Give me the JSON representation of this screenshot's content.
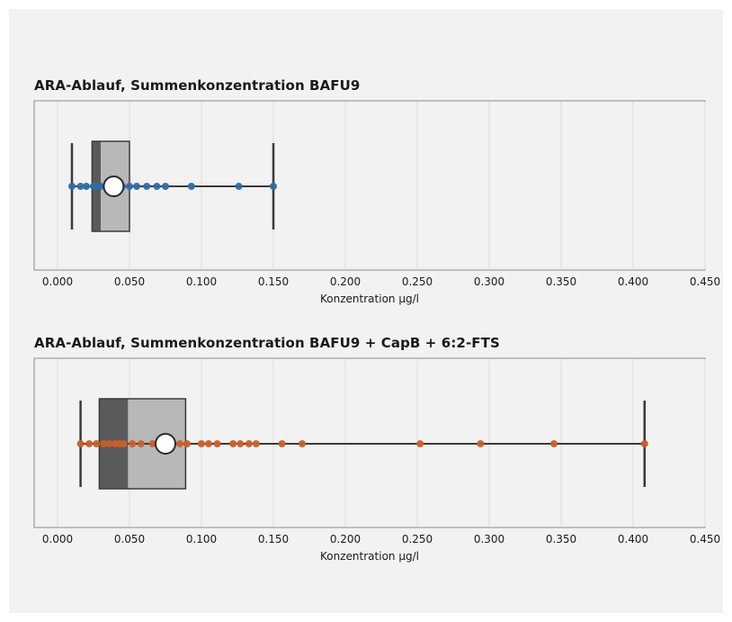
{
  "chart_data": [
    {
      "type": "box",
      "title": "ARA-Ablauf, Summenkonzentration BAFU9",
      "xlabel": "Konzentration µg/l",
      "xlim": [
        0,
        0.45
      ],
      "xticks": [
        "0.000",
        "0.050",
        "0.100",
        "0.150",
        "0.200",
        "0.250",
        "0.300",
        "0.350",
        "0.400",
        "0.450"
      ],
      "grid": true,
      "box": {
        "whisker_low": 0.01,
        "q1": 0.024,
        "median": 0.03,
        "q3": 0.05,
        "whisker_high": 0.15,
        "mean": 0.039
      },
      "points": [
        0.01,
        0.016,
        0.02,
        0.025,
        0.027,
        0.03,
        0.035,
        0.041,
        0.045,
        0.05,
        0.055,
        0.062,
        0.069,
        0.075,
        0.093,
        0.126,
        0.15
      ],
      "point_color": "#2e6da4",
      "box_dark_color": "#5a5a5a",
      "box_light_color": "#b8b8b8"
    },
    {
      "type": "box",
      "title": "ARA-Ablauf, Summenkonzentration BAFU9 + CapB + 6:2-FTS",
      "xlabel": "Konzentration µg/l",
      "xlim": [
        0,
        0.45
      ],
      "xticks": [
        "0.000",
        "0.050",
        "0.100",
        "0.150",
        "0.200",
        "0.250",
        "0.300",
        "0.350",
        "0.400",
        "0.450"
      ],
      "grid": true,
      "box": {
        "whisker_low": 0.016,
        "q1": 0.029,
        "median": 0.049,
        "q3": 0.089,
        "whisker_high": 0.408,
        "mean": 0.075
      },
      "points": [
        0.016,
        0.022,
        0.027,
        0.032,
        0.036,
        0.04,
        0.043,
        0.046,
        0.052,
        0.058,
        0.066,
        0.085,
        0.09,
        0.1,
        0.105,
        0.111,
        0.122,
        0.127,
        0.133,
        0.138,
        0.156,
        0.17,
        0.252,
        0.294,
        0.345,
        0.408
      ],
      "point_color": "#c8602a",
      "box_dark_color": "#5a5a5a",
      "box_light_color": "#b8b8b8"
    }
  ]
}
